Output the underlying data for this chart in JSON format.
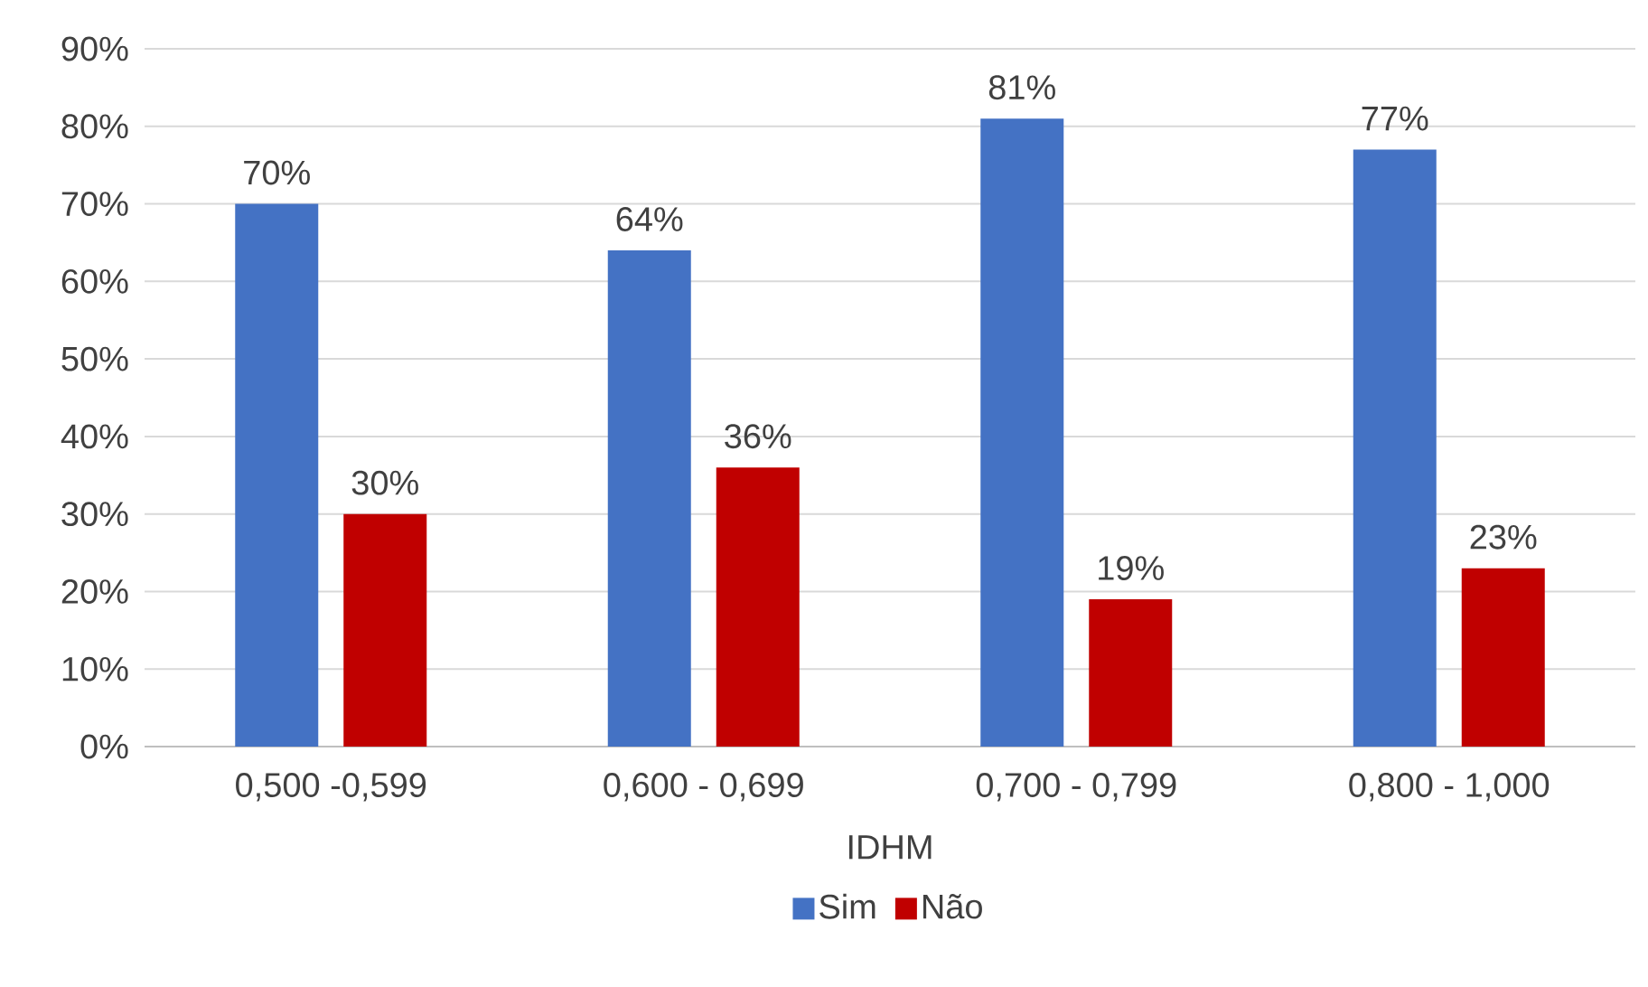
{
  "chart_data": {
    "type": "bar",
    "xlabel": "IDHM",
    "categories": [
      "0,500 -0,599",
      "0,600 - 0,699",
      "0,700 - 0,799",
      "0,800 - 1,000"
    ],
    "series": [
      {
        "name": "Sim",
        "color": "#4472c4",
        "values": [
          70,
          64,
          81,
          77
        ],
        "value_labels": [
          "70%",
          "64%",
          "81%",
          "77%"
        ]
      },
      {
        "name": "Não",
        "color": "#c00000",
        "values": [
          30,
          36,
          19,
          23
        ],
        "value_labels": [
          "30%",
          "36%",
          "19%",
          "23%"
        ]
      }
    ],
    "ylim": [
      0,
      90
    ],
    "yticks": [
      {
        "value": 0,
        "label": "0%"
      },
      {
        "value": 10,
        "label": "10%"
      },
      {
        "value": 20,
        "label": "20%"
      },
      {
        "value": 30,
        "label": "30%"
      },
      {
        "value": 40,
        "label": "40%"
      },
      {
        "value": 50,
        "label": "50%"
      },
      {
        "value": 60,
        "label": "60%"
      },
      {
        "value": 70,
        "label": "70%"
      },
      {
        "value": 80,
        "label": "80%"
      },
      {
        "value": 90,
        "label": "90%"
      }
    ],
    "grid": "y",
    "legend": "bottom"
  }
}
